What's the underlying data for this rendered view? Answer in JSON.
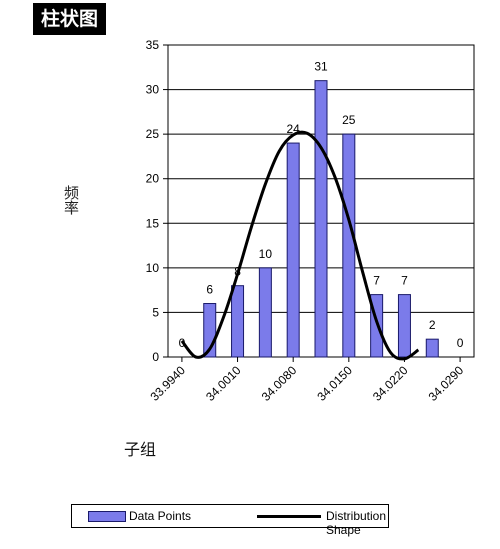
{
  "header": {
    "title": "柱状图"
  },
  "chart_data": {
    "type": "bar",
    "ylabel": "频率",
    "xlabel": "子组",
    "ylim": [
      0,
      35
    ],
    "yticks": [
      0,
      5,
      10,
      15,
      20,
      25,
      30,
      35
    ],
    "xticks": [
      "33.9940",
      "34.0010",
      "34.0080",
      "34.0150",
      "34.0220",
      "34.0290"
    ],
    "grid": "horizontal",
    "bar_color": "#7b7bea",
    "series": [
      {
        "name": "Data Points",
        "values": [
          0,
          6,
          8,
          10,
          24,
          31,
          25,
          7,
          7,
          2,
          0
        ]
      },
      {
        "name": "Distribution Shape",
        "type": "line",
        "color": "#000000",
        "points": [
          [
            0.0,
            1.8
          ],
          [
            0.5,
            0.0
          ],
          [
            1.0,
            0.9
          ],
          [
            1.5,
            4.5
          ],
          [
            2.0,
            9.3
          ],
          [
            2.5,
            14.6
          ],
          [
            3.0,
            19.4
          ],
          [
            3.5,
            23.1
          ],
          [
            4.0,
            24.9
          ],
          [
            4.5,
            25.1
          ],
          [
            5.0,
            23.5
          ],
          [
            5.5,
            20.2
          ],
          [
            6.0,
            15.4
          ],
          [
            6.5,
            9.5
          ],
          [
            7.0,
            4.0
          ],
          [
            7.5,
            0.5
          ],
          [
            8.0,
            -0.2
          ],
          [
            8.5,
            0.8
          ]
        ]
      }
    ],
    "legend": {
      "position": "bottom",
      "entries": [
        "Data Points",
        "Distribution Shape"
      ]
    }
  }
}
